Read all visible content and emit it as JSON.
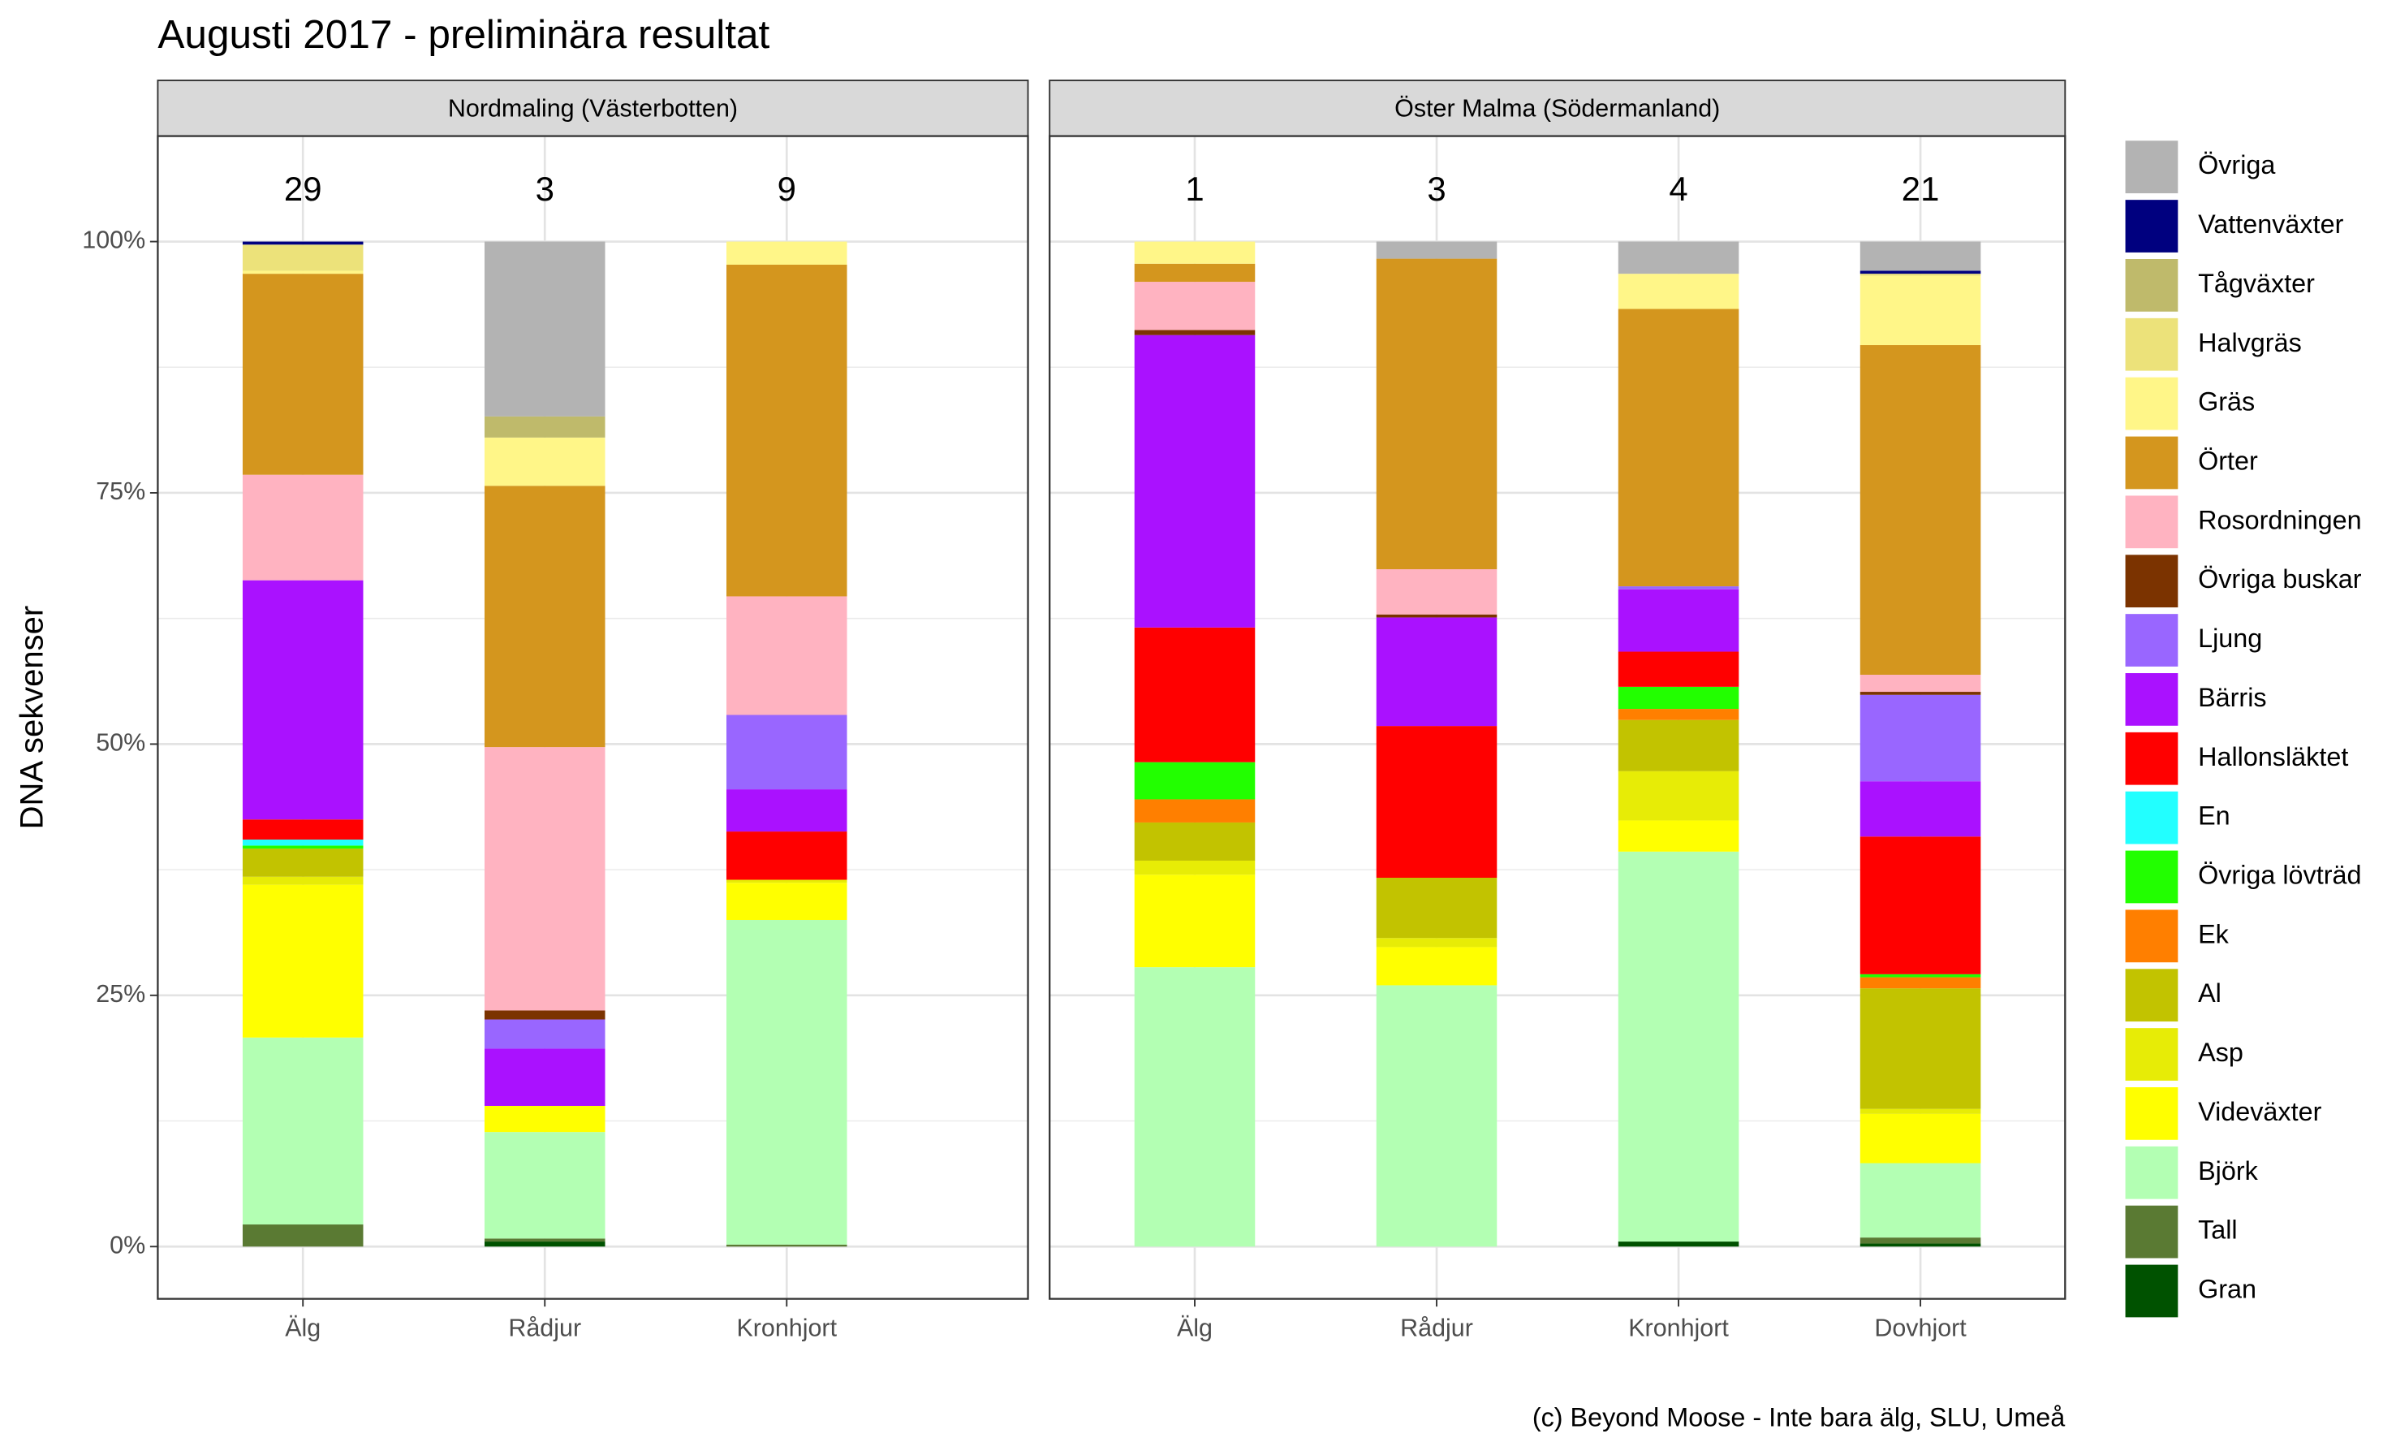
{
  "title": "Augusti 2017 - preliminära resultat",
  "ylabel": "DNA sekvenser",
  "caption": "(c) Beyond Moose - Inte bara älg, SLU, Umeå",
  "chart_data": [
    {
      "type": "stacked_bar",
      "title": "Nordmaling (Västerbotten)",
      "categories": [
        "Älg",
        "Rådjur",
        "Kronhjort"
      ],
      "counts": [
        29,
        3,
        9
      ],
      "ylim": [
        -5.2,
        110.5
      ],
      "yticks": [
        {
          "value": 0,
          "label": "0%"
        },
        {
          "value": 25,
          "label": "25%"
        },
        {
          "value": 50,
          "label": "50%"
        },
        {
          "value": 75,
          "label": "75%"
        },
        {
          "value": 100,
          "label": "100%"
        }
      ],
      "yminor_ticks": [
        12.5,
        37.5,
        62.5,
        87.5
      ],
      "grid": true,
      "series": [
        {
          "name": "Gran",
          "color": "#005200",
          "values": [
            0,
            0.5,
            0
          ]
        },
        {
          "name": "Tall",
          "color": "#5a7a33",
          "values": [
            2.2,
            0.3,
            0.2
          ]
        },
        {
          "name": "Björk",
          "color": "#b3ffb3",
          "values": [
            18.6,
            10.6,
            32.3
          ]
        },
        {
          "name": "Videväxter",
          "color": "#ffff00",
          "values": [
            15.2,
            2.6,
            3.7
          ]
        },
        {
          "name": "Asp",
          "color": "#e7ec06",
          "values": [
            0.8,
            0,
            0.3
          ]
        },
        {
          "name": "Al",
          "color": "#c2c300",
          "values": [
            2.8,
            0,
            0
          ]
        },
        {
          "name": "Ek",
          "color": "#ff7f00",
          "values": [
            0,
            0,
            0
          ]
        },
        {
          "name": "Övriga lövträd",
          "color": "#22ff00",
          "values": [
            0.3,
            0,
            0
          ]
        },
        {
          "name": "En",
          "color": "#22ffff",
          "values": [
            0.6,
            0,
            0
          ]
        },
        {
          "name": "Hallonsläktet",
          "color": "#ff0000",
          "values": [
            2.0,
            0,
            4.8
          ]
        },
        {
          "name": "Bärris",
          "color": "#aa11ff",
          "values": [
            23.8,
            5.7,
            4.2
          ]
        },
        {
          "name": "Ljung",
          "color": "#9966ff",
          "values": [
            0,
            2.9,
            7.4
          ]
        },
        {
          "name": "Övriga buskar",
          "color": "#7b3300",
          "values": [
            0,
            0.9,
            0
          ]
        },
        {
          "name": "Rosordningen",
          "color": "#ffb3c1",
          "values": [
            10.5,
            26.2,
            11.8
          ]
        },
        {
          "name": "Örter",
          "color": "#d4961e",
          "values": [
            20.0,
            26.0,
            33.0
          ]
        },
        {
          "name": "Gräs",
          "color": "#fff688",
          "values": [
            0.3,
            4.8,
            2.3
          ]
        },
        {
          "name": "Halvgräs",
          "color": "#ece27a",
          "values": [
            2.6,
            0,
            0
          ]
        },
        {
          "name": "Tågväxter",
          "color": "#bfba6b",
          "values": [
            0,
            2.1,
            0
          ]
        },
        {
          "name": "Vattenväxter",
          "color": "#00007f",
          "values": [
            0.3,
            0,
            0
          ]
        },
        {
          "name": "Övriga",
          "color": "#b3b3b3",
          "values": [
            0,
            17.4,
            0
          ]
        }
      ]
    },
    {
      "type": "stacked_bar",
      "title": "Öster Malma (Södermanland)",
      "categories": [
        "Älg",
        "Rådjur",
        "Kronhjort",
        "Dovhjort"
      ],
      "counts": [
        1,
        3,
        4,
        21
      ],
      "ylim": [
        -5.2,
        110.5
      ],
      "yticks": [
        0,
        25,
        50,
        75,
        100
      ],
      "yminor_ticks": [
        12.5,
        37.5,
        62.5,
        87.5
      ],
      "grid": true,
      "series": [
        {
          "name": "Gran",
          "color": "#005200",
          "values": [
            0,
            0,
            0.5,
            0.3
          ]
        },
        {
          "name": "Tall",
          "color": "#5a7a33",
          "values": [
            0,
            0,
            0,
            0.6
          ]
        },
        {
          "name": "Björk",
          "color": "#b3ffb3",
          "values": [
            27.8,
            26.0,
            38.8,
            7.4
          ]
        },
        {
          "name": "Videväxter",
          "color": "#ffff00",
          "values": [
            9.2,
            3.8,
            3.1,
            4.9
          ]
        },
        {
          "name": "Asp",
          "color": "#e7ec06",
          "values": [
            1.4,
            0.9,
            4.9,
            0.5
          ]
        },
        {
          "name": "Al",
          "color": "#c2c300",
          "values": [
            3.8,
            6.0,
            5.1,
            12.0
          ]
        },
        {
          "name": "Ek",
          "color": "#ff7f00",
          "values": [
            2.3,
            0,
            1.1,
            1.1
          ]
        },
        {
          "name": "Övriga lövträd",
          "color": "#22ff00",
          "values": [
            3.7,
            0,
            2.2,
            0.3
          ]
        },
        {
          "name": "En",
          "color": "#22ffff",
          "values": [
            0,
            0,
            0,
            0
          ]
        },
        {
          "name": "Hallonsläktet",
          "color": "#ff0000",
          "values": [
            13.4,
            15.1,
            3.5,
            13.7
          ]
        },
        {
          "name": "Bärris",
          "color": "#aa11ff",
          "values": [
            29.1,
            10.8,
            6.2,
            5.5
          ]
        },
        {
          "name": "Ljung",
          "color": "#9966ff",
          "values": [
            0,
            0,
            0.3,
            8.6
          ]
        },
        {
          "name": "Övriga buskar",
          "color": "#7b3300",
          "values": [
            0.5,
            0.3,
            0,
            0.3
          ]
        },
        {
          "name": "Rosordningen",
          "color": "#ffb3c1",
          "values": [
            4.8,
            4.5,
            0,
            1.7
          ]
        },
        {
          "name": "Örter",
          "color": "#d4961e",
          "values": [
            1.8,
            30.9,
            27.6,
            32.8
          ]
        },
        {
          "name": "Gräs",
          "color": "#fff688",
          "values": [
            2.2,
            0,
            3.5,
            6.9
          ]
        },
        {
          "name": "Halvgräs",
          "color": "#ece27a",
          "values": [
            0,
            0,
            0,
            0.2
          ]
        },
        {
          "name": "Tågväxter",
          "color": "#bfba6b",
          "values": [
            0,
            0,
            0,
            0
          ]
        },
        {
          "name": "Vattenväxter",
          "color": "#00007f",
          "values": [
            0,
            0,
            0,
            0.3
          ]
        },
        {
          "name": "Övriga",
          "color": "#b3b3b3",
          "values": [
            0,
            1.7,
            3.2,
            2.9
          ]
        }
      ]
    }
  ]
}
